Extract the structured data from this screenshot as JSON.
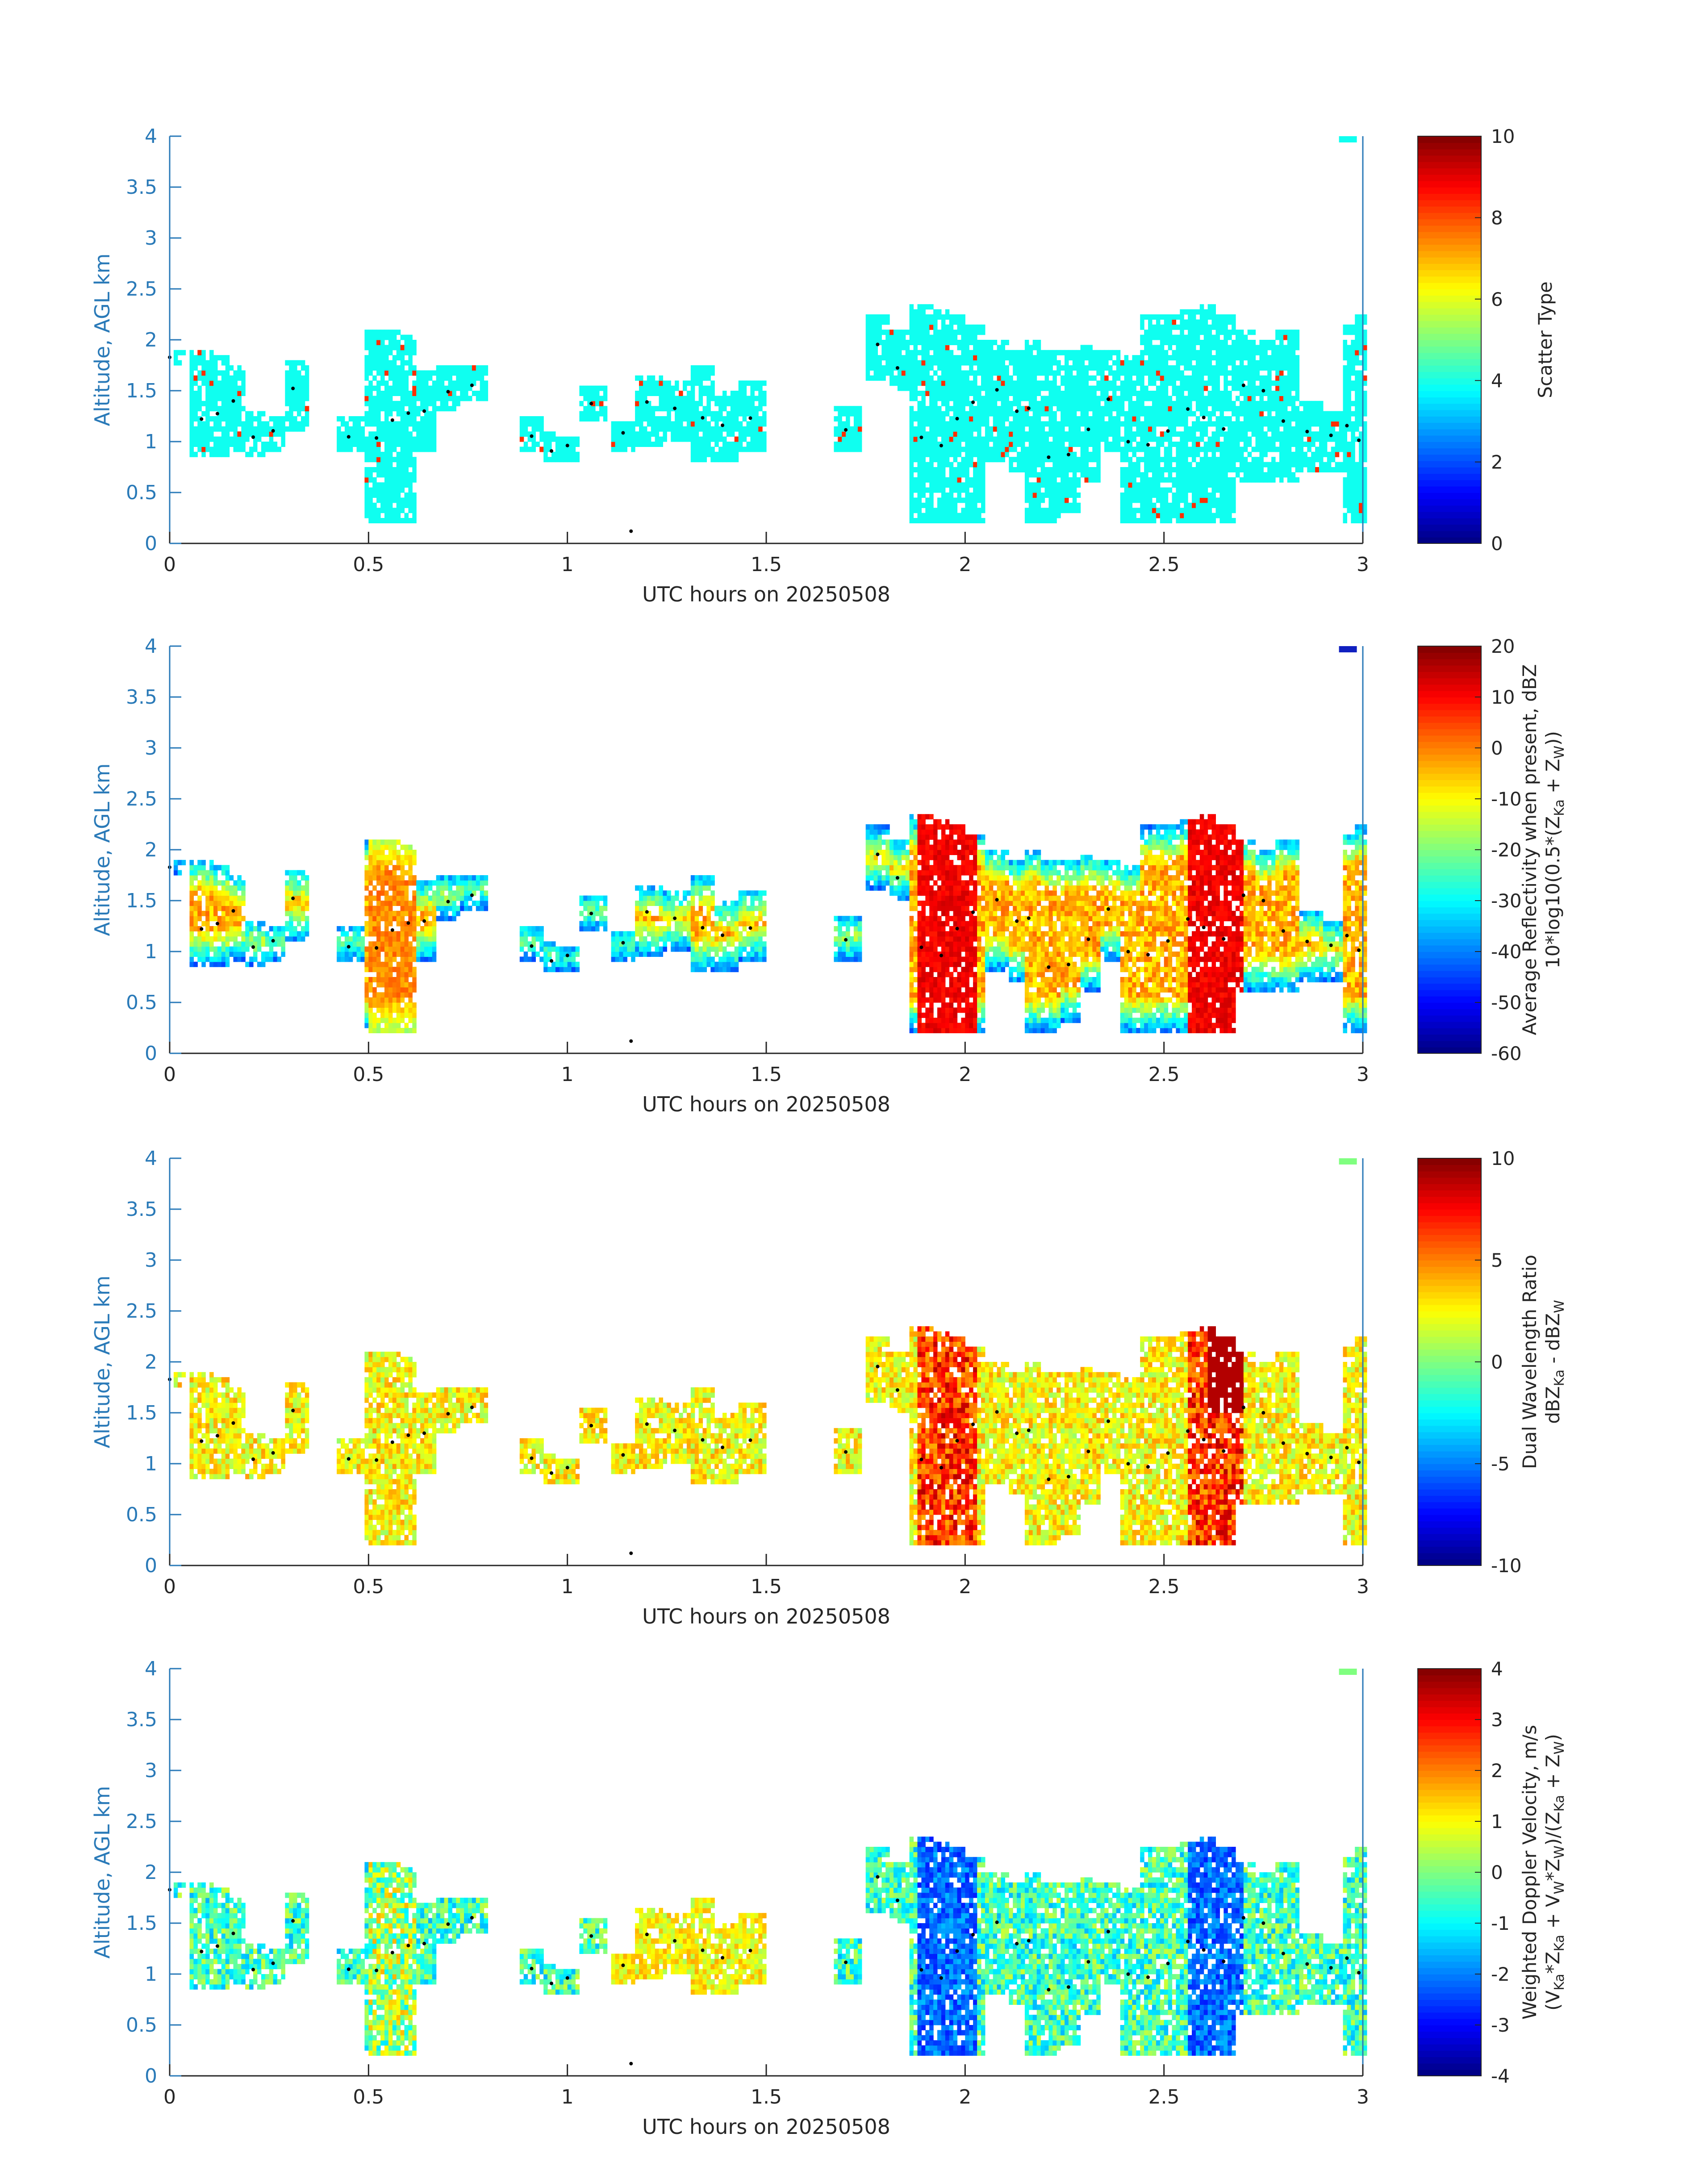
{
  "figure": {
    "axis_color": "#2a7ab8",
    "cloud_dot_color": "#000000",
    "colormap": "jet",
    "xlabel": "UTC hours on 20250508",
    "ylabel": "Altitude, AGL km",
    "x_ticks": [
      "0",
      "0.5",
      "1",
      "1.5",
      "2",
      "2.5",
      "3"
    ],
    "y_ticks": [
      "0",
      "0.5",
      "1",
      "1.5",
      "2",
      "2.5",
      "3",
      "3.5",
      "4"
    ]
  },
  "chart_data": [
    {
      "type": "heatmap",
      "xlabel": "UTC hours on 20250508",
      "ylabel": "Altitude, AGL km",
      "xlim": [
        0,
        3
      ],
      "ylim": [
        0,
        4
      ],
      "colorbar": {
        "label_lines": [
          "Scatter Type"
        ],
        "range": [
          0,
          10
        ],
        "ticks": [
          "0",
          "2",
          "4",
          "6",
          "8",
          "10"
        ]
      },
      "fill": "categorical",
      "dominant_value": 3.9,
      "rare_value": 8.3
    },
    {
      "type": "heatmap",
      "xlabel": "UTC hours on 20250508",
      "ylabel": "Altitude, AGL km",
      "xlim": [
        0,
        3
      ],
      "ylim": [
        0,
        4
      ],
      "colorbar": {
        "label_lines": [
          "Average Reflectivity when present, dBZ",
          "10*log10(0.5*(Z",
          "Ka",
          " + Z",
          "W",
          "))"
        ],
        "range": [
          -60,
          20
        ],
        "ticks": [
          "-60",
          "-50",
          "-40",
          "-30",
          "-20",
          "-10",
          "0",
          "10",
          "20"
        ]
      },
      "fill": "reflectivity"
    },
    {
      "type": "heatmap",
      "xlabel": "UTC hours on 20250508",
      "ylabel": "Altitude, AGL km",
      "xlim": [
        0,
        3
      ],
      "ylim": [
        0,
        4
      ],
      "colorbar": {
        "label_lines": [
          "Dual Wavelength Ratio",
          "dBZ",
          "Ka",
          " - dBZ",
          "W"
        ],
        "range": [
          -10,
          10
        ],
        "ticks": [
          "-10",
          "-5",
          "0",
          "5",
          "10"
        ]
      },
      "fill": "dwr"
    },
    {
      "type": "heatmap",
      "xlabel": "UTC hours on 20250508",
      "ylabel": "Altitude, AGL km",
      "xlim": [
        0,
        3
      ],
      "ylim": [
        0,
        4
      ],
      "colorbar": {
        "label_lines": [
          "Weighted Doppler Velocity, m/s",
          "(V",
          "Ka",
          "*Z",
          "Ka",
          " + V",
          "W",
          "*Z",
          "W",
          ")/(Z",
          "Ka",
          " + Z",
          "W",
          ")"
        ],
        "range": [
          -4,
          4
        ],
        "ticks": [
          "-4",
          "-3",
          "-2",
          "-1",
          "0",
          "1",
          "2",
          "3",
          "4"
        ]
      },
      "fill": "velocity"
    }
  ],
  "cloud_columns": [
    [
      0.0,
      1.75,
      1.9
    ],
    [
      0.08,
      0.85,
      1.9
    ],
    [
      0.12,
      0.85,
      1.85
    ],
    [
      0.16,
      0.9,
      1.75
    ],
    [
      0.21,
      0.85,
      1.3
    ],
    [
      0.26,
      0.9,
      1.25
    ],
    [
      0.31,
      1.1,
      1.8
    ],
    [
      0.45,
      0.9,
      1.25
    ],
    [
      0.52,
      0.2,
      2.1
    ],
    [
      0.56,
      0.2,
      2.1
    ],
    [
      0.6,
      0.2,
      2.05
    ],
    [
      0.64,
      0.9,
      1.7
    ],
    [
      0.7,
      1.3,
      1.75
    ],
    [
      0.76,
      1.4,
      1.75
    ],
    [
      0.91,
      0.9,
      1.25
    ],
    [
      0.96,
      0.8,
      1.1
    ],
    [
      1.0,
      0.8,
      1.05
    ],
    [
      1.06,
      1.2,
      1.55
    ],
    [
      1.14,
      0.9,
      1.2
    ],
    [
      1.2,
      0.95,
      1.65
    ],
    [
      1.27,
      1.0,
      1.6
    ],
    [
      1.34,
      0.8,
      1.75
    ],
    [
      1.39,
      0.8,
      1.5
    ],
    [
      1.46,
      0.9,
      1.6
    ],
    [
      1.7,
      0.9,
      1.35
    ],
    [
      1.78,
      1.6,
      2.2
    ],
    [
      1.83,
      1.5,
      2.1
    ],
    [
      1.89,
      0.2,
      2.3
    ],
    [
      1.94,
      0.2,
      2.25
    ],
    [
      1.98,
      0.2,
      2.2
    ],
    [
      2.02,
      0.2,
      2.15
    ],
    [
      2.08,
      0.8,
      2.0
    ],
    [
      2.13,
      0.7,
      1.9
    ],
    [
      2.16,
      0.2,
      2.0
    ],
    [
      2.21,
      0.2,
      1.9
    ],
    [
      2.26,
      0.3,
      1.9
    ],
    [
      2.31,
      0.6,
      1.95
    ],
    [
      2.36,
      0.9,
      1.9
    ],
    [
      2.41,
      0.2,
      1.85
    ],
    [
      2.46,
      0.2,
      2.2
    ],
    [
      2.51,
      0.2,
      2.2
    ],
    [
      2.56,
      0.2,
      2.25
    ],
    [
      2.6,
      0.2,
      2.3
    ],
    [
      2.65,
      0.2,
      2.2
    ],
    [
      2.7,
      0.6,
      2.1
    ],
    [
      2.75,
      0.6,
      2.0
    ],
    [
      2.8,
      0.6,
      2.1
    ],
    [
      2.86,
      0.7,
      1.4
    ],
    [
      2.92,
      0.7,
      1.3
    ],
    [
      2.96,
      0.2,
      2.15
    ],
    [
      2.99,
      0.2,
      2.2
    ]
  ],
  "isolated_echoes": [
    [
      2.94,
      3.96
    ],
    [
      1.16,
      0.12
    ]
  ]
}
